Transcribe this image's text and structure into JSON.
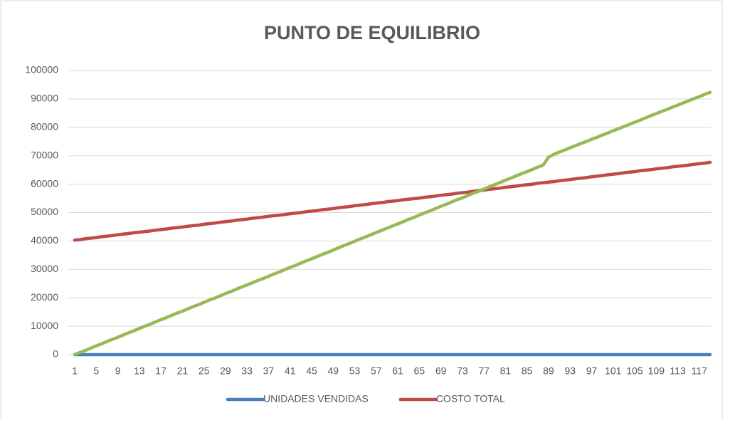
{
  "chart_data": {
    "type": "line",
    "title": "PUNTO DE EQUILIBRIO",
    "categories": [
      1,
      null,
      null,
      null,
      5,
      null,
      null,
      null,
      9,
      null,
      null,
      null,
      13,
      null,
      null,
      null,
      17,
      null,
      null,
      null,
      21,
      null,
      null,
      null,
      25,
      null,
      null,
      null,
      29,
      null,
      null,
      null,
      33,
      null,
      null,
      null,
      37,
      null,
      null,
      null,
      41,
      null,
      null,
      null,
      45,
      null,
      null,
      null,
      49,
      null,
      null,
      null,
      53,
      null,
      null,
      null,
      57,
      null,
      null,
      null,
      61,
      null,
      null,
      null,
      65,
      null,
      null,
      null,
      69,
      null,
      null,
      null,
      73,
      null,
      null,
      null,
      77,
      null,
      null,
      null,
      81,
      null,
      null,
      null,
      85,
      null,
      null,
      null,
      89,
      null,
      null,
      null,
      93,
      null,
      null,
      null,
      97,
      null,
      null,
      null,
      101,
      null,
      null,
      null,
      105,
      null,
      null,
      null,
      109,
      null,
      null,
      null,
      113,
      null,
      null,
      null,
      117,
      null,
      null
    ],
    "series": [
      {
        "name": "UNIDADES VENDIDAS",
        "color": "#4a7ebb",
        "values": [
          0,
          0,
          0,
          0,
          0,
          0,
          0,
          0,
          0,
          0,
          0,
          0,
          0,
          0,
          0,
          0,
          0,
          0,
          0,
          0,
          0,
          0,
          0,
          0,
          0,
          0,
          0,
          0,
          0,
          0,
          0,
          0,
          0,
          0,
          0,
          0,
          0,
          0,
          0,
          0,
          0,
          0,
          0,
          0,
          0,
          0,
          0,
          0,
          0,
          0,
          0,
          0,
          0,
          0,
          0,
          0,
          0,
          0,
          0,
          0,
          0,
          0,
          0,
          0,
          0,
          0,
          0,
          0,
          0,
          0,
          0,
          0,
          0,
          0,
          0,
          0,
          0,
          0,
          0,
          0,
          0,
          0,
          0,
          0,
          0,
          0,
          0,
          0,
          0,
          0,
          0,
          0,
          0,
          0,
          0,
          0,
          0,
          0,
          0,
          0,
          0,
          0,
          0,
          0,
          0,
          0,
          0,
          0,
          0,
          0,
          0,
          0,
          0,
          0,
          0,
          0,
          0,
          0,
          0
        ]
      },
      {
        "name": "COSTO TOTAL",
        "color": "#be4b48",
        "values": [
          40300,
          40500,
          40800,
          41000,
          41200,
          41500,
          41700,
          41900,
          42200,
          42400,
          42600,
          42900,
          43100,
          43300,
          43500,
          43800,
          44000,
          44200,
          44500,
          44700,
          44900,
          45200,
          45400,
          45600,
          45900,
          46100,
          46300,
          46600,
          46800,
          47000,
          47300,
          47500,
          47700,
          48000,
          48200,
          48400,
          48700,
          48900,
          49100,
          49300,
          49600,
          49800,
          50000,
          50300,
          50500,
          50700,
          51000,
          51200,
          51400,
          51700,
          51900,
          52100,
          52400,
          52600,
          52800,
          53100,
          53300,
          53500,
          53800,
          54000,
          54200,
          54500,
          54700,
          54900,
          55100,
          55400,
          55600,
          55800,
          56100,
          56300,
          56500,
          56800,
          57000,
          57200,
          57500,
          57700,
          57900,
          58200,
          58400,
          58600,
          58900,
          59100,
          59300,
          59600,
          59800,
          60000,
          60300,
          60500,
          60700,
          60900,
          61200,
          61400,
          61600,
          61900,
          62100,
          62300,
          62600,
          62800,
          63000,
          63300,
          63500,
          63700,
          64000,
          64200,
          64400,
          64700,
          64900,
          65100,
          65400,
          65600,
          65800,
          66100,
          66300,
          66500,
          66700,
          67000,
          67200,
          67400,
          67700
        ]
      },
      {
        "color": "#98b954",
        "values": [
          0,
          800,
          1500,
          2300,
          3100,
          3800,
          4600,
          5400,
          6100,
          6900,
          7700,
          8400,
          9200,
          10000,
          10700,
          11500,
          12300,
          13000,
          13800,
          14600,
          15300,
          16100,
          16900,
          17600,
          18400,
          19200,
          19900,
          20700,
          21500,
          22200,
          23000,
          23800,
          24500,
          25300,
          26100,
          26800,
          27600,
          28400,
          29100,
          29900,
          30700,
          31400,
          32200,
          33000,
          33700,
          34500,
          35300,
          36000,
          36800,
          37600,
          38400,
          39100,
          39900,
          40700,
          41400,
          42200,
          43000,
          43700,
          44500,
          45300,
          46000,
          46800,
          47600,
          48300,
          49100,
          49900,
          50600,
          51400,
          52200,
          52900,
          53700,
          54500,
          55200,
          56000,
          56800,
          57500,
          58300,
          59100,
          59800,
          60600,
          61400,
          62100,
          62900,
          63700,
          64400,
          65200,
          66000,
          66700,
          69500,
          70500,
          71300,
          72000,
          72800,
          73500,
          74300,
          75000,
          75800,
          76500,
          77300,
          78000,
          78800,
          79500,
          80300,
          81000,
          81800,
          82500,
          83300,
          84100,
          84800,
          85600,
          86300,
          87100,
          87800,
          88600,
          89300,
          90100,
          90800,
          91600,
          92300
        ]
      }
    ],
    "ylim": [
      0,
      100000
    ],
    "yticks": [
      0,
      10000,
      20000,
      30000,
      40000,
      50000,
      60000,
      70000,
      80000,
      90000,
      100000
    ],
    "grid": true
  }
}
